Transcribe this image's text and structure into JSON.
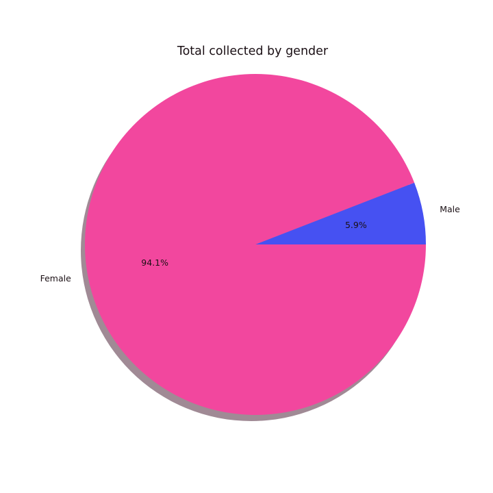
{
  "chart_data": {
    "type": "pie",
    "title": "Total collected by gender",
    "shadow": true,
    "start_angle_deg": 0,
    "direction": "counterclockwise",
    "slices": [
      {
        "label": "Male",
        "value": 5.9,
        "pct_label": "5.9%",
        "color": "#4651f2"
      },
      {
        "label": "Female",
        "value": 94.1,
        "pct_label": "94.1%",
        "color": "#f2479e"
      }
    ]
  }
}
